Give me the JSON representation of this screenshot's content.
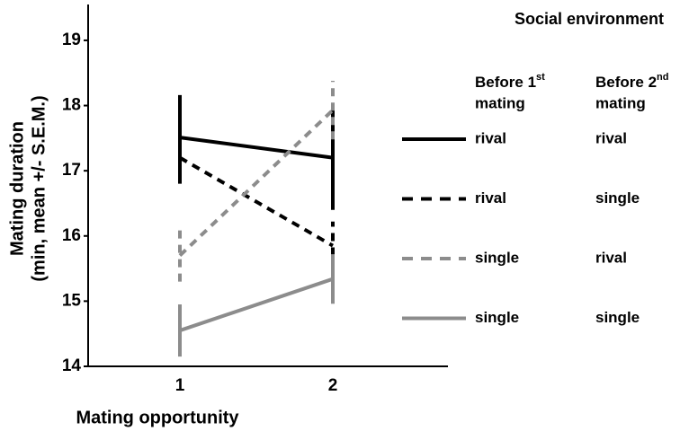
{
  "chart_data": {
    "type": "line",
    "ylabel": [
      "Mating duration",
      "(min, mean +/- S.E.M.)"
    ],
    "xlabel": "Mating opportunity",
    "categories": [
      "1",
      "2"
    ],
    "ylim": [
      14,
      19.55
    ],
    "yticks": [
      14,
      15,
      16,
      17,
      18,
      19
    ],
    "legend_title": "Social environment",
    "legend_columns": [
      [
        "Before 1",
        "st",
        "mating"
      ],
      [
        "Before 2",
        "nd",
        "mating"
      ]
    ],
    "series": [
      {
        "labels": [
          "rival",
          "rival"
        ],
        "color": "#000000",
        "dashed": false,
        "values": [
          17.51,
          17.2
        ],
        "errors": [
          0.65,
          0.8
        ]
      },
      {
        "labels": [
          "rival",
          "single"
        ],
        "color": "#000000",
        "dashed": true,
        "values": [
          17.2,
          15.85
        ],
        "errors": [
          0.4,
          0.37
        ]
      },
      {
        "labels": [
          "single",
          "rival"
        ],
        "color": "#8c8c8c",
        "dashed": true,
        "values": [
          15.7,
          17.93
        ],
        "errors": [
          0.4,
          0.45
        ]
      },
      {
        "labels": [
          "single",
          "single"
        ],
        "color": "#8c8c8c",
        "dashed": false,
        "values": [
          14.55,
          15.34
        ],
        "errors": [
          0.4,
          0.38
        ]
      }
    ]
  }
}
